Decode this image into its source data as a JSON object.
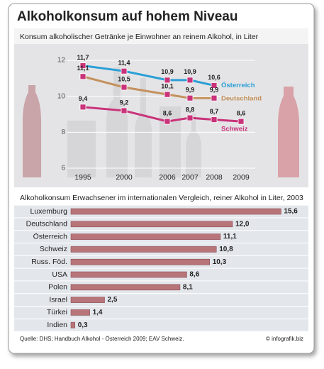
{
  "title": "Alkoholkonsum auf hohem Niveau",
  "source": "Quelle: DHS; Handbuch Alkohol - Österreich 2009; EAV Schweiz.",
  "credit": "© infografik.biz",
  "chart_data": [
    {
      "type": "line",
      "title": "Konsum alkoholischer Getränke je Einwohner an reinem Alkohol, in Liter",
      "categories": [
        "1995",
        "2000",
        "2006",
        "2007",
        "2008",
        "2009"
      ],
      "series": [
        {
          "name": "Österreich",
          "color": "#2a9fd6",
          "values": [
            11.7,
            11.4,
            10.9,
            10.9,
            10.6,
            null
          ],
          "value_labels": [
            "11,7",
            "11,4",
            "10,9",
            "10,9",
            "10,6",
            null
          ]
        },
        {
          "name": "Deutschland",
          "color": "#c4915e",
          "values": [
            11.1,
            10.5,
            10.1,
            9.9,
            9.9,
            null
          ],
          "value_labels": [
            "11,1",
            "10,5",
            "10,1",
            "9,9",
            "9,9",
            null
          ]
        },
        {
          "name": "Schweiz",
          "color": "#c9337a",
          "values": [
            9.4,
            9.2,
            8.6,
            8.8,
            8.7,
            8.6
          ],
          "value_labels": [
            "9,4",
            "9,2",
            "8,6",
            "8,8",
            "8,7",
            "8,6"
          ]
        }
      ],
      "ylim": [
        6,
        12
      ],
      "yticks": [
        6,
        8,
        10,
        12
      ]
    },
    {
      "type": "bar",
      "title": "Alkoholkonsum Erwachsener im internationalen Vergleich, reiner Alkohol in Liter, 2003",
      "categories": [
        "Luxemburg",
        "Deutschland",
        "Österreich",
        "Schweiz",
        "Russ. Föd.",
        "USA",
        "Polen",
        "Israel",
        "Türkei",
        "Indien"
      ],
      "values": [
        15.6,
        12.0,
        11.1,
        10.8,
        10.3,
        8.6,
        8.1,
        2.5,
        1.4,
        0.3
      ],
      "value_labels": [
        "15,6",
        "12,0",
        "11,1",
        "10,8",
        "10,3",
        "8,6",
        "8,1",
        "2,5",
        "1,4",
        "0,3"
      ],
      "color": "#b87579"
    }
  ]
}
